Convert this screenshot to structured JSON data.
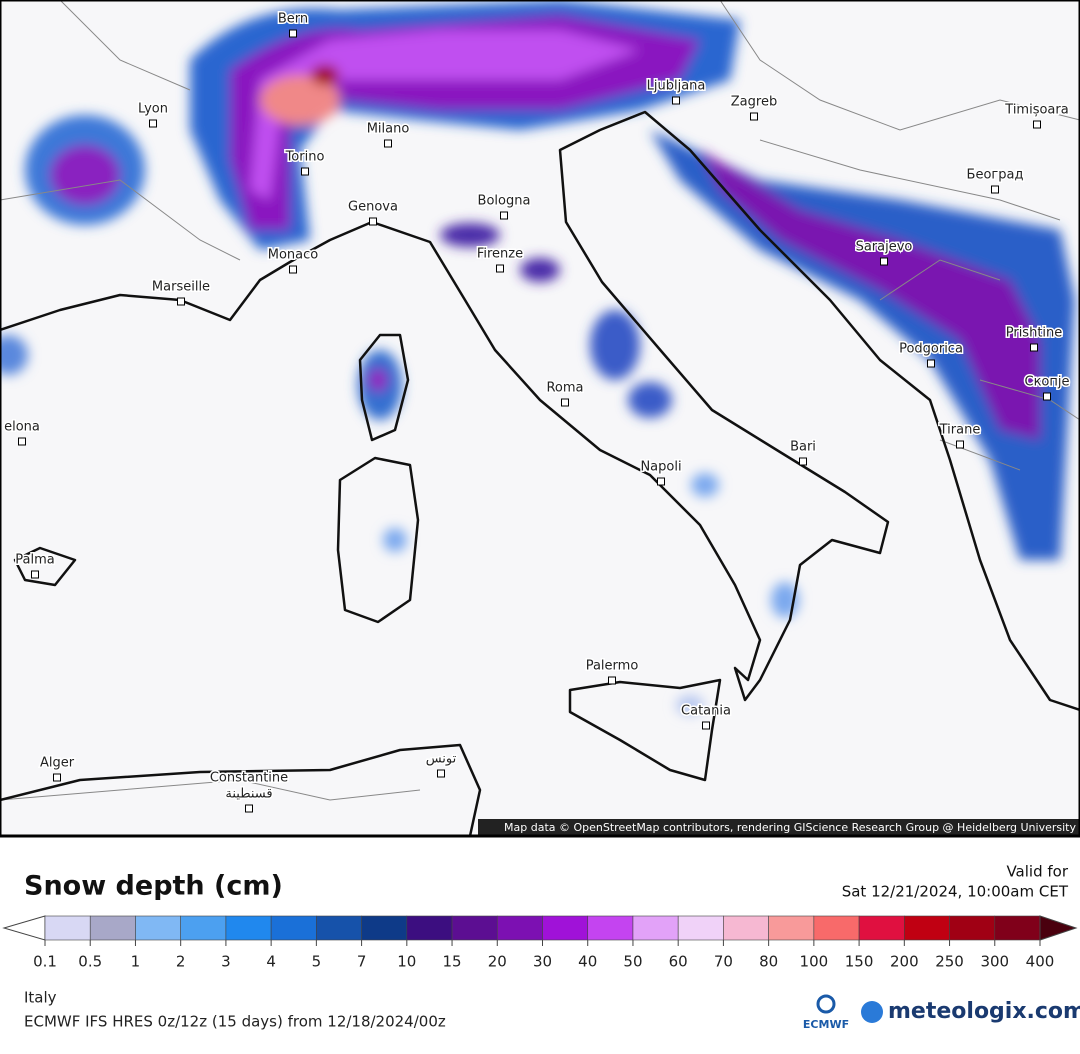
{
  "map": {
    "attribution": "Map data © OpenStreetMap contributors, rendering GIScience Research Group @ Heidelberg University",
    "cities": [
      "Bern",
      "Lyon",
      "Milano",
      "Torino",
      "Genova",
      "Bologna",
      "Firenze",
      "Monaco",
      "Marseille",
      "Ljubljana",
      "Zagreb",
      "Timișoara",
      "Београд",
      "Sarajevo",
      "Podgorica",
      "Prishtine",
      "Скопје",
      "Tirane",
      "Roma",
      "Bari",
      "Napoli",
      "Palma",
      "Palermo",
      "Catania",
      "Alger",
      "Constantine",
      "قسنطينة",
      "تونس",
      "elona"
    ]
  },
  "legend": {
    "title": "Snow depth (cm)",
    "valid_label": "Valid for",
    "valid_time": "Sat 12/21/2024, 10:00am CET",
    "ticks": [
      0.1,
      0.5,
      1,
      2,
      3,
      4,
      5,
      7,
      10,
      15,
      20,
      30,
      40,
      50,
      60,
      70,
      80,
      100,
      150,
      200,
      250,
      300,
      400
    ],
    "colors": [
      "#d8d8f4",
      "#a8a8c8",
      "#80b8f4",
      "#4ca0f0",
      "#2088ee",
      "#1a70d8",
      "#1652aa",
      "#0e3a88",
      "#3c0e80",
      "#5c0e92",
      "#7c10b2",
      "#a012d8",
      "#c444f0",
      "#e2a2f8",
      "#f0d2f8",
      "#f6b8d2",
      "#f89a9a",
      "#f86a6a",
      "#e01040",
      "#c00012",
      "#a00014",
      "#80001a"
    ],
    "under_color": "#ffffff",
    "over_color": "#4a000e"
  },
  "footer": {
    "region": "Italy",
    "model": "ECMWF IFS HRES 0z/12z (15 days) from 12/18/2024/00z",
    "ecmwf_logo": "ECMWF",
    "brand": "meteologix.com"
  }
}
